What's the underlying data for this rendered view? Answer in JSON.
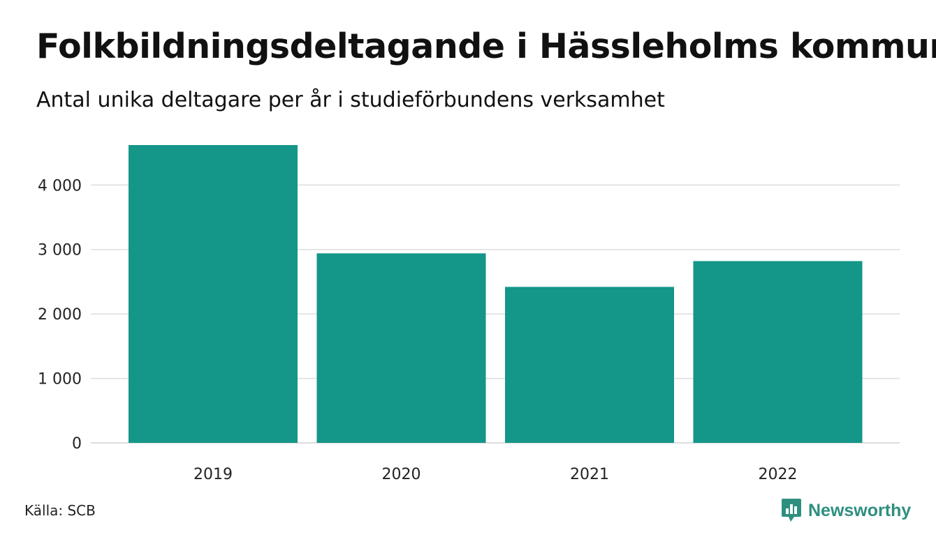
{
  "title": "Folkbildningsdeltagande i Hässleholms kommun",
  "subtitle": "Antal unika deltagare per år i studieförbundens verksamhet",
  "source": "Källa: SCB",
  "brand": {
    "name": "Newsworthy",
    "icon": "newsworthy-logo-icon",
    "color": "#2e8f7f"
  },
  "colors": {
    "bar": "#149688",
    "grid": "#dddddd"
  },
  "chart_data": {
    "type": "bar",
    "categories": [
      "2019",
      "2020",
      "2021",
      "2022"
    ],
    "values": [
      4620,
      2940,
      2420,
      2820
    ],
    "ylim": [
      0,
      4620
    ],
    "yticks": [
      0,
      1000,
      2000,
      3000,
      4000
    ],
    "ytick_labels": [
      "0",
      "1 000",
      "2 000",
      "3 000",
      "4 000"
    ],
    "grid": true,
    "legend": "none",
    "xlabel": "",
    "ylabel": ""
  }
}
